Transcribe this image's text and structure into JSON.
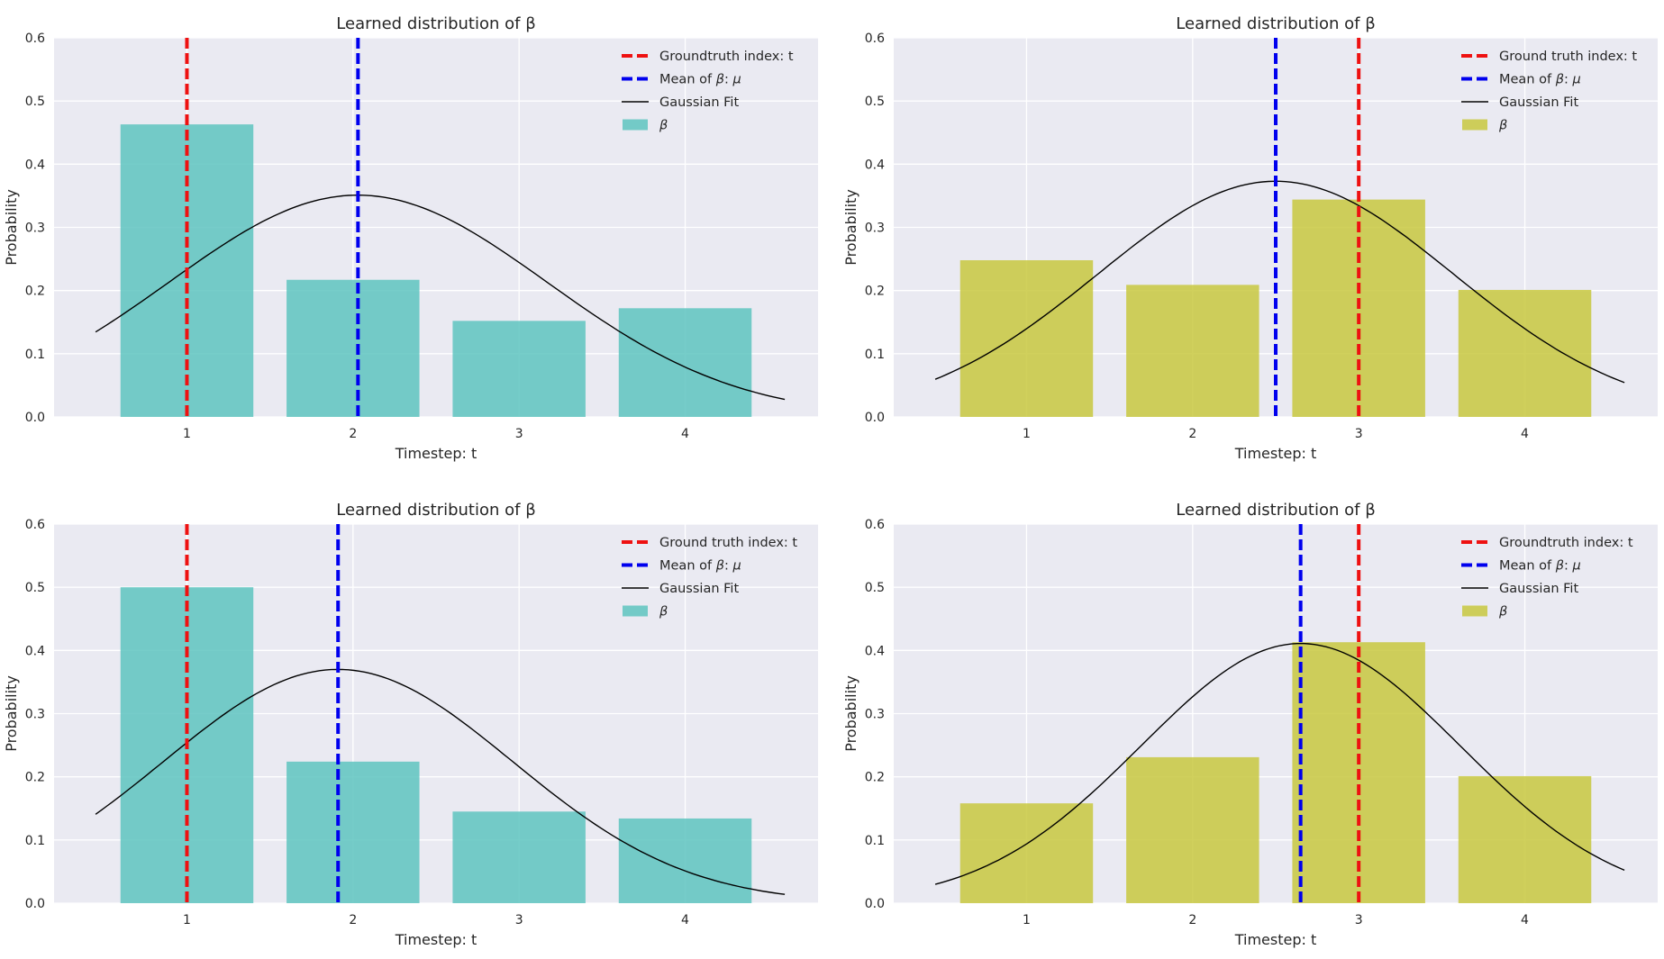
{
  "chart_data": [
    {
      "type": "bar",
      "title": "Learned distribution of β",
      "xlabel": "Timestep: t",
      "ylabel": "Probability",
      "categories": [
        "1",
        "2",
        "3",
        "4"
      ],
      "x": [
        1,
        2,
        3,
        4
      ],
      "values": [
        0.463,
        0.217,
        0.152,
        0.172
      ],
      "ylim": [
        0,
        0.6
      ],
      "xlim": [
        0.2,
        4.8
      ],
      "yticks": [
        "0.0",
        "0.1",
        "0.2",
        "0.3",
        "0.4",
        "0.5",
        "0.6"
      ],
      "bar_color": "#5ec4c0",
      "groundtruth_index": 1,
      "mean": 2.03,
      "gaussian": {
        "mu": 2.03,
        "sigma": 1.14,
        "x_range": [
          0.45,
          4.6
        ]
      },
      "legend": {
        "placement": "top-right",
        "groundtruth": "Groundtruth index: t",
        "mean_prefix": "Mean of ",
        "mean_mid": ": ",
        "gaussian": "Gaussian Fit",
        "beta": "β",
        "mu": "μ"
      }
    },
    {
      "type": "bar",
      "title": "Learned distribution of β",
      "xlabel": "Timestep: t",
      "ylabel": "Probability",
      "categories": [
        "1",
        "2",
        "3",
        "4"
      ],
      "x": [
        1,
        2,
        3,
        4
      ],
      "values": [
        0.248,
        0.209,
        0.344,
        0.201
      ],
      "ylim": [
        0,
        0.6
      ],
      "xlim": [
        0.2,
        4.8
      ],
      "yticks": [
        "0.0",
        "0.1",
        "0.2",
        "0.3",
        "0.4",
        "0.5",
        "0.6"
      ],
      "bar_color": "#c8c840",
      "groundtruth_index": 3,
      "mean": 2.5,
      "gaussian": {
        "mu": 2.5,
        "sigma": 1.07,
        "x_range": [
          0.45,
          4.6
        ]
      },
      "legend": {
        "placement": "top-right",
        "groundtruth": "Ground truth index: t",
        "mean_prefix": "Mean of ",
        "mean_mid": ": ",
        "gaussian": "Gaussian Fit",
        "beta": "β",
        "mu": "μ"
      }
    },
    {
      "type": "bar",
      "title": "Learned distribution of β",
      "xlabel": "Timestep: t",
      "ylabel": "Probability",
      "categories": [
        "1",
        "2",
        "3",
        "4"
      ],
      "x": [
        1,
        2,
        3,
        4
      ],
      "values": [
        0.5,
        0.224,
        0.145,
        0.134
      ],
      "ylim": [
        0,
        0.6
      ],
      "xlim": [
        0.2,
        4.8
      ],
      "yticks": [
        "0.0",
        "0.1",
        "0.2",
        "0.3",
        "0.4",
        "0.5",
        "0.6"
      ],
      "bar_color": "#5ec4c0",
      "groundtruth_index": 1,
      "mean": 1.91,
      "gaussian": {
        "mu": 1.91,
        "sigma": 1.05,
        "x_range": [
          0.45,
          4.6
        ]
      },
      "legend": {
        "placement": "top-right",
        "groundtruth": "Ground truth index: t",
        "mean_prefix": "Mean of ",
        "mean_mid": ": ",
        "gaussian": "Gaussian Fit",
        "beta": "β",
        "mu": "μ"
      }
    },
    {
      "type": "bar",
      "title": "Learned distribution of β",
      "xlabel": "Timestep: t",
      "ylabel": "Probability",
      "categories": [
        "1",
        "2",
        "3",
        "4"
      ],
      "x": [
        1,
        2,
        3,
        4
      ],
      "values": [
        0.158,
        0.231,
        0.413,
        0.201
      ],
      "ylim": [
        0,
        0.6
      ],
      "xlim": [
        0.2,
        4.8
      ],
      "yticks": [
        "0.0",
        "0.1",
        "0.2",
        "0.3",
        "0.4",
        "0.5",
        "0.6"
      ],
      "bar_color": "#c8c840",
      "groundtruth_index": 3,
      "mean": 2.65,
      "gaussian": {
        "mu": 2.65,
        "sigma": 0.96,
        "x_range": [
          0.45,
          4.6
        ]
      },
      "legend": {
        "placement": "top-right",
        "groundtruth": "Groundtruth index: t",
        "mean_prefix": "Mean of ",
        "mean_mid": ": ",
        "gaussian": "Gaussian Fit",
        "beta": "β",
        "mu": "μ"
      }
    }
  ]
}
